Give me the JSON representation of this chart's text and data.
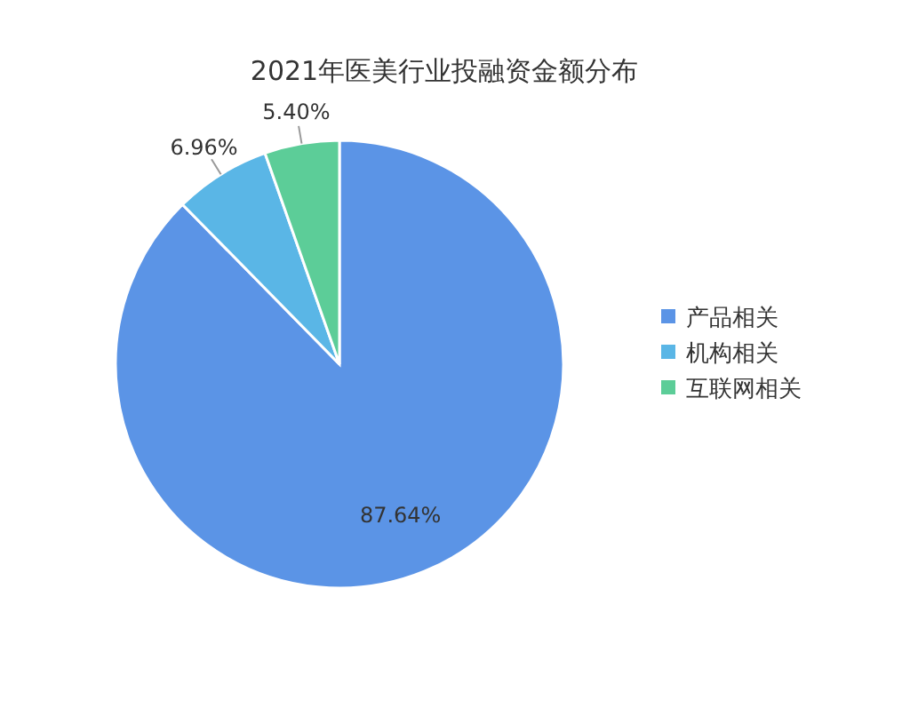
{
  "chart_data": {
    "type": "pie",
    "title": "2021年医美行业投融资金额分布",
    "categories": [
      "产品相关",
      "机构相关",
      "互联网相关"
    ],
    "values": [
      87.64,
      6.96,
      5.4
    ],
    "colors": [
      "#5b94e6",
      "#5ab6e6",
      "#5ccd98"
    ],
    "value_labels": [
      "87.64%",
      "6.96%",
      "5.40%"
    ],
    "legend": "right"
  }
}
